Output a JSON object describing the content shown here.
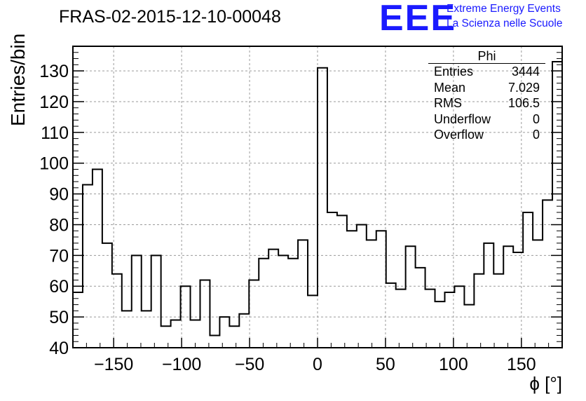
{
  "title": "FRAS-02-2015-12-10-00048",
  "logo": {
    "mark": "EEE",
    "line1": "Extreme Energy Events",
    "line2": "La Scienza nelle Scuole"
  },
  "stats": {
    "title": "Phi",
    "rows": [
      {
        "label": "Entries",
        "value": "3444"
      },
      {
        "label": "Mean",
        "value": "7.029"
      },
      {
        "label": "RMS",
        "value": "106.5"
      },
      {
        "label": "Underflow",
        "value": "0"
      },
      {
        "label": "Overflow",
        "value": "0"
      }
    ]
  },
  "chart_data": {
    "type": "histogram",
    "title": "FRAS-02-2015-12-10-00048",
    "xlabel": "ϕ [°]",
    "ylabel": "Entries/bin",
    "xlim": [
      -180,
      180
    ],
    "ylim": [
      40,
      138
    ],
    "bin_width": 7.2,
    "xticks": [
      -150,
      -100,
      -50,
      0,
      50,
      100,
      150
    ],
    "xtick_labels": [
      "−150",
      "−100",
      "−50",
      "0",
      "50",
      "100",
      "150"
    ],
    "yticks": [
      40,
      50,
      60,
      70,
      80,
      90,
      100,
      110,
      120,
      130
    ],
    "grid": true,
    "bin_edges_start": -180,
    "values": [
      58,
      93,
      98,
      74,
      64,
      52,
      70,
      52,
      70,
      47,
      49,
      60,
      49,
      62,
      44,
      50,
      47,
      51,
      62,
      69,
      72,
      70,
      69,
      75,
      57,
      131,
      84,
      83,
      78,
      80,
      75,
      78,
      61,
      59,
      73,
      66,
      59,
      55,
      58,
      60,
      54,
      64,
      74,
      64,
      73,
      71,
      84,
      75,
      88,
      133
    ]
  }
}
